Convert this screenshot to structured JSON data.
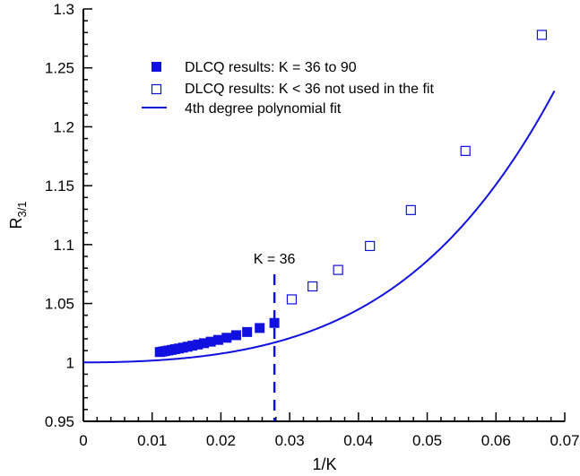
{
  "chart_data": {
    "type": "scatter",
    "xlabel": "1/K",
    "ylabel": {
      "base": "R",
      "sub": "3/1"
    },
    "xlim": [
      0,
      0.07
    ],
    "ylim": [
      0.95,
      1.3
    ],
    "xticks": [
      "0",
      "0.01",
      "0.02",
      "0.03",
      "0.04",
      "0.05",
      "0.06",
      "0.07"
    ],
    "yticks": [
      "0.95",
      "1",
      "1.05",
      "1.1",
      "1.15",
      "1.2",
      "1.25",
      "1.3"
    ],
    "grid": false,
    "legend_position": "top-left",
    "colors": {
      "series": "#1010e0",
      "axis": "#000000"
    },
    "series": [
      {
        "name": "DLCQ results: K = 36 to 90",
        "marker": "filled-square",
        "x": [
          0.01111,
          0.01149,
          0.0119,
          0.01235,
          0.01282,
          0.01333,
          0.01389,
          0.01449,
          0.01515,
          0.01587,
          0.01667,
          0.01754,
          0.01852,
          0.01961,
          0.02083,
          0.02222,
          0.02381,
          0.02564,
          0.02778
        ],
        "y": [
          1.0088,
          1.0092,
          1.0096,
          1.0101,
          1.0106,
          1.0112,
          1.0118,
          1.0125,
          1.0133,
          1.0142,
          1.0152,
          1.0163,
          1.0176,
          1.0191,
          1.0209,
          1.0231,
          1.0258,
          1.0292,
          1.0335
        ]
      },
      {
        "name": "DLCQ results: K < 36 not used in the fit",
        "marker": "open-square",
        "x": [
          0.0303,
          0.03333,
          0.03704,
          0.04167,
          0.04762,
          0.05556,
          0.06667
        ],
        "y": [
          1.0535,
          1.0645,
          1.0785,
          1.0988,
          1.1293,
          1.1795,
          1.278
        ]
      },
      {
        "name": "4th degree polynomial fit",
        "type": "line",
        "polynomial_coefficients": [
          1.0,
          0.0,
          13.5,
          150,
          5400
        ],
        "x_range": [
          0,
          0.0685
        ]
      }
    ],
    "annotations": [
      {
        "text": "K = 36",
        "x": 0.02778,
        "style": "dashed-vertical-line"
      }
    ]
  }
}
